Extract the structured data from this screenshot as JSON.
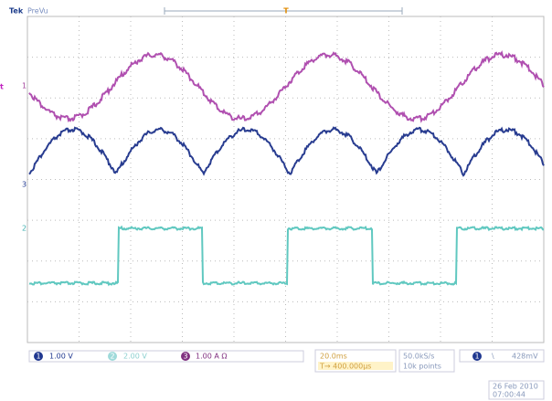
{
  "header": {
    "brand": "Tek",
    "mode": "PreVu",
    "trigger_marker": "T"
  },
  "side_label": "t",
  "channels": [
    {
      "marker": "1",
      "scale": "1.00 V"
    },
    {
      "marker": "2",
      "scale": "2.00 V"
    },
    {
      "marker": "3",
      "scale": "1.00 A Ω"
    }
  ],
  "timebase": {
    "scale": "20.0ms",
    "position": "T→ 400.000μs"
  },
  "acquisition": {
    "rate": "50.0kS/s",
    "length": "10k points"
  },
  "trigger": {
    "channel": "1",
    "slope": "\\",
    "level": "428mV"
  },
  "timestamp": {
    "date": "26 Feb 2010",
    "time": "07:00:44"
  }
}
